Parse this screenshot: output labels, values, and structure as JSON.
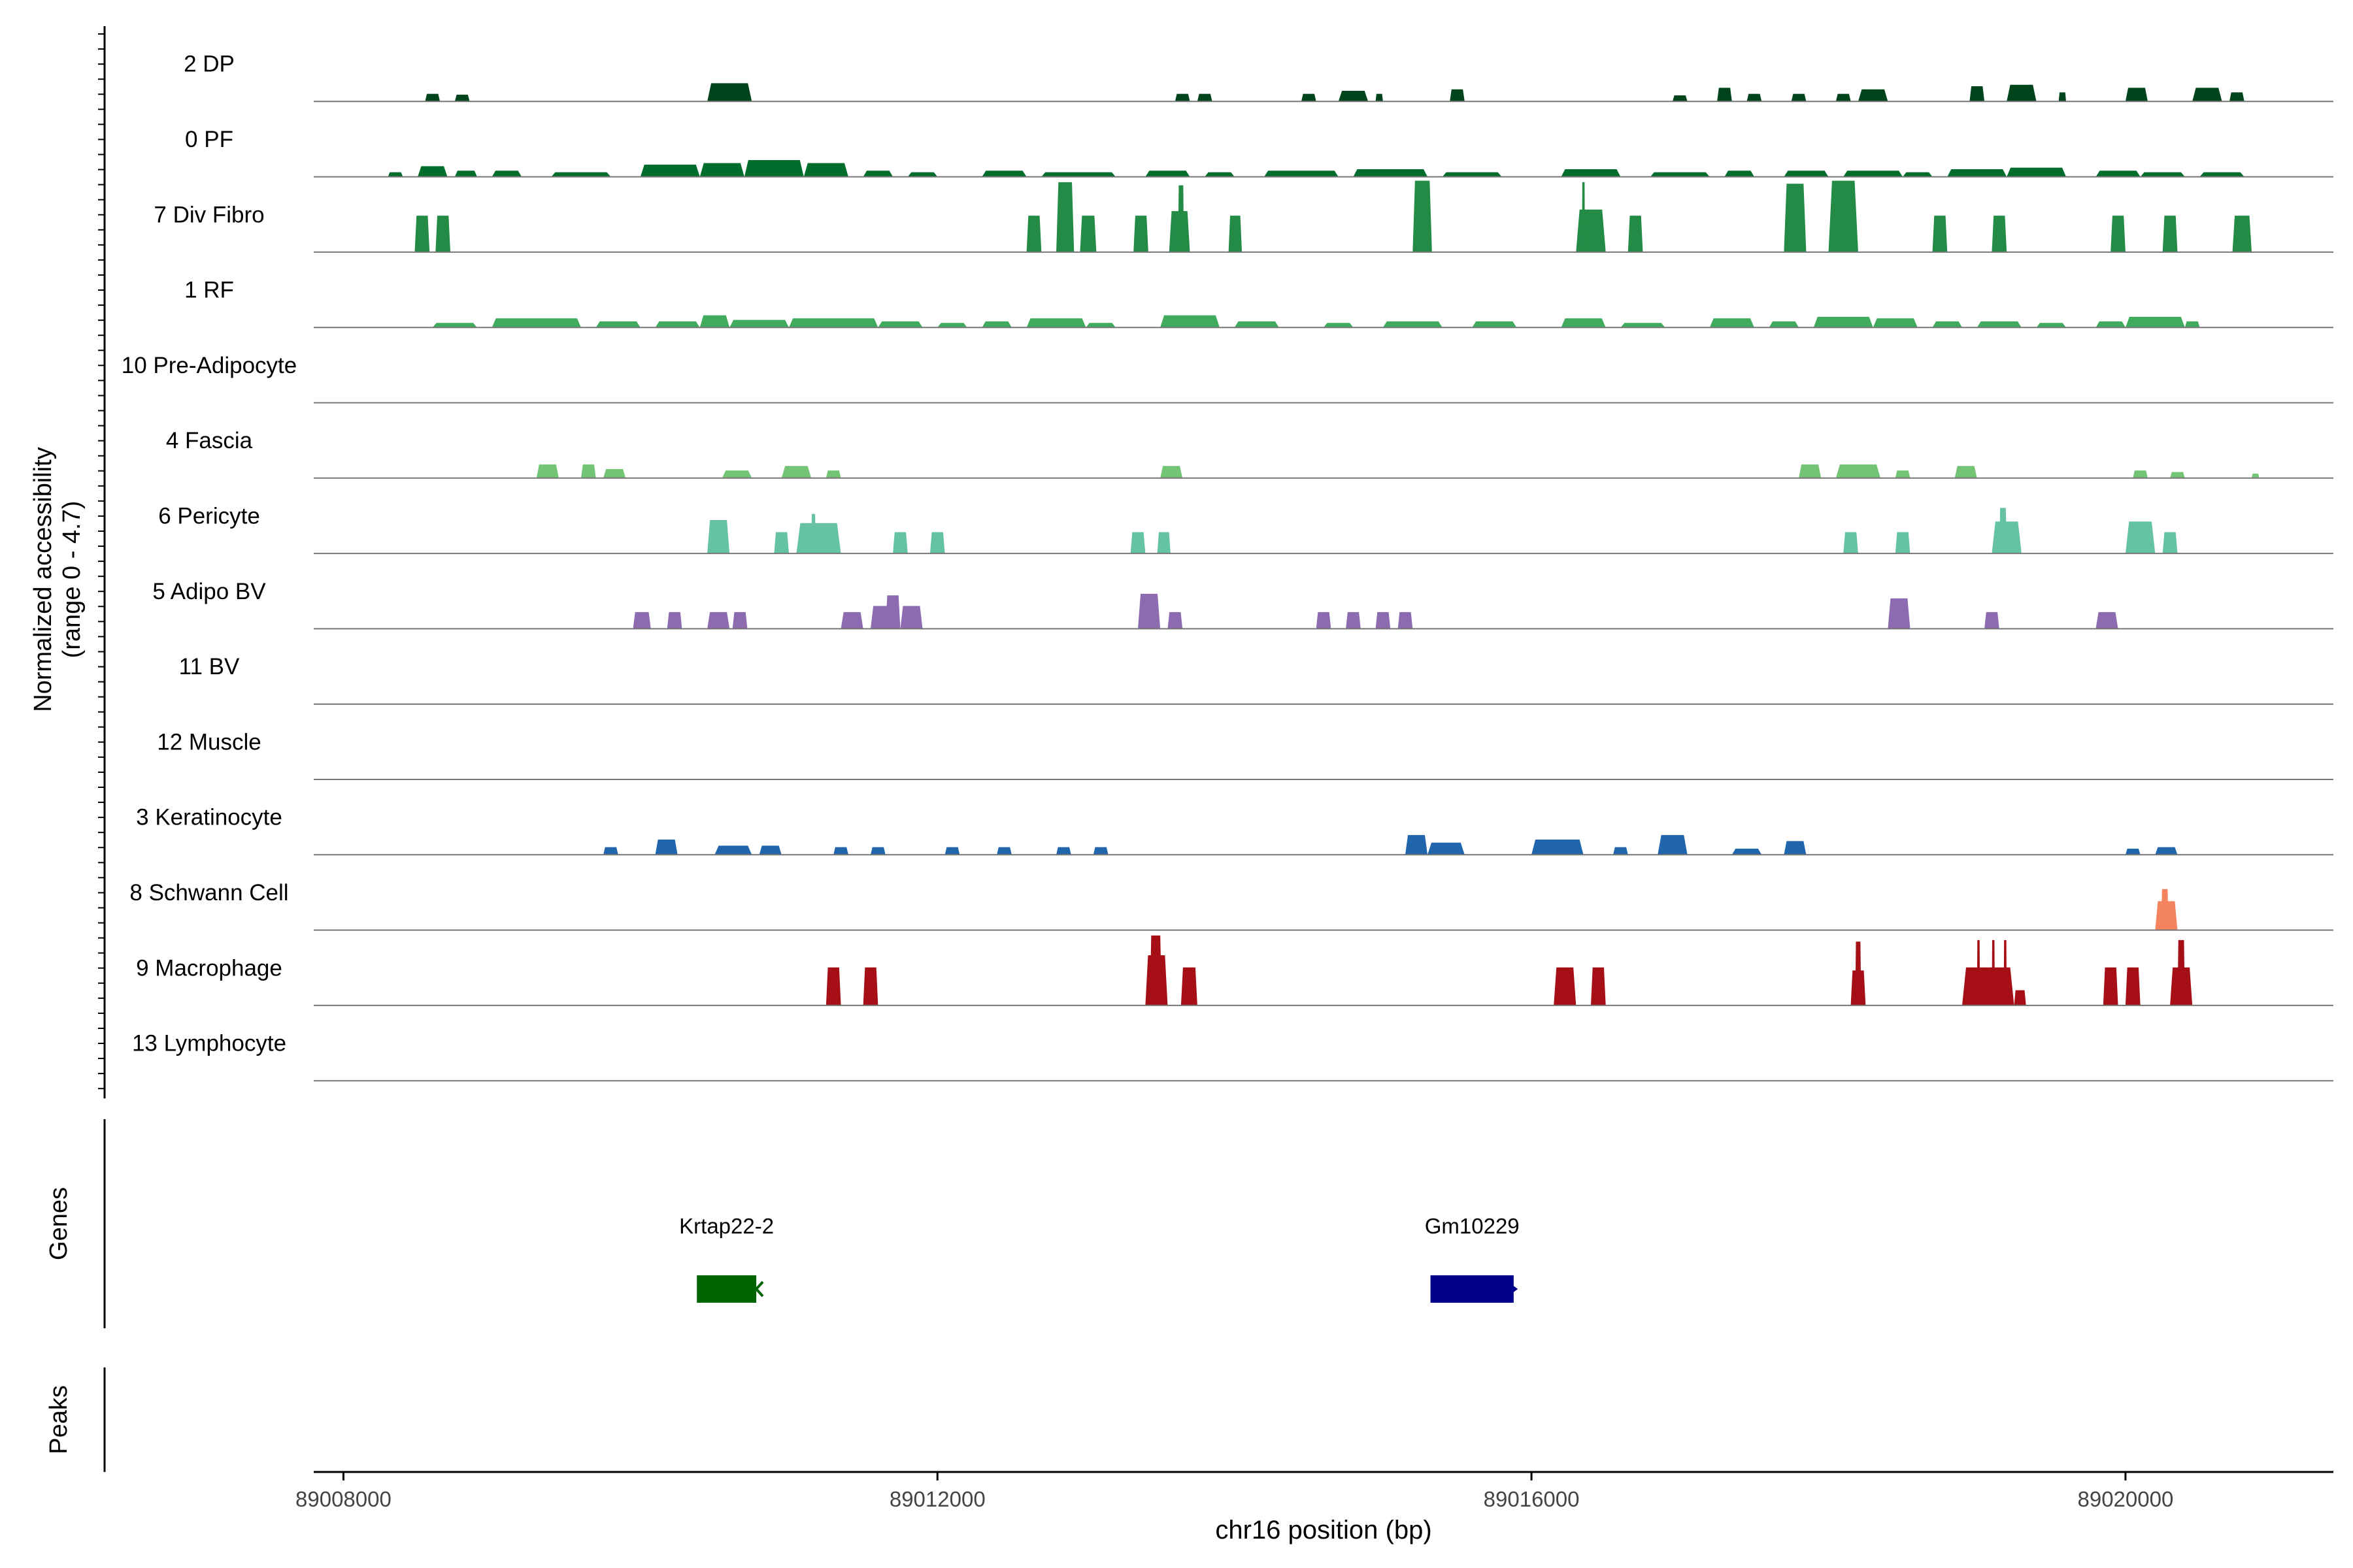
{
  "chart_data": {
    "type": "area",
    "title": "",
    "ylabel_line1": "Normalized accessibility",
    "ylabel_line2": "(range 0 - 4.7)",
    "xlabel": "chr16 position (bp)",
    "xlim": [
      89007800,
      89021400
    ],
    "ylim": [
      0,
      4.7
    ],
    "xticks": [
      89008000,
      89012000,
      89016000,
      89020000
    ],
    "xtick_labels": [
      "89008000",
      "89012000",
      "89016000",
      "89020000"
    ],
    "track_labels": {
      "genes": "Genes",
      "peaks": "Peaks"
    },
    "tracks": [
      {
        "name": "2 DP",
        "color": "#00441B",
        "peaks": [
          [
            89008550,
            89008650,
            0.5
          ],
          [
            89008750,
            89008850,
            0.45
          ],
          [
            89010450,
            89010750,
            1.2
          ],
          [
            89013600,
            89013700,
            0.5
          ],
          [
            89013750,
            89013850,
            0.5
          ],
          [
            89014450,
            89014550,
            0.5
          ],
          [
            89014700,
            89014900,
            0.7
          ],
          [
            89014950,
            89015000,
            0.5
          ],
          [
            89015450,
            89015550,
            0.8
          ],
          [
            89016950,
            89017050,
            0.4
          ],
          [
            89017250,
            89017350,
            0.9
          ],
          [
            89017450,
            89017550,
            0.5
          ],
          [
            89017750,
            89017850,
            0.5
          ],
          [
            89018050,
            89018150,
            0.5
          ],
          [
            89018200,
            89018400,
            0.8
          ],
          [
            89018950,
            89019050,
            1.0
          ],
          [
            89019200,
            89019400,
            1.1
          ],
          [
            89019550,
            89019600,
            0.6
          ],
          [
            89020000,
            89020150,
            0.9
          ],
          [
            89020450,
            89020650,
            0.9
          ],
          [
            89020700,
            89020800,
            0.6
          ]
        ]
      },
      {
        "name": "0 PF",
        "color": "#006D2C",
        "peaks": [
          [
            89008300,
            89008400,
            0.3
          ],
          [
            89008500,
            89008700,
            0.7
          ],
          [
            89008750,
            89008900,
            0.4
          ],
          [
            89009000,
            89009200,
            0.4
          ],
          [
            89009400,
            89009800,
            0.3
          ],
          [
            89010000,
            89010400,
            0.8
          ],
          [
            89010400,
            89010700,
            0.9
          ],
          [
            89010700,
            89011100,
            1.1
          ],
          [
            89011100,
            89011400,
            0.9
          ],
          [
            89011500,
            89011700,
            0.4
          ],
          [
            89011800,
            89012000,
            0.3
          ],
          [
            89012300,
            89012600,
            0.4
          ],
          [
            89012700,
            89013200,
            0.3
          ],
          [
            89013400,
            89013700,
            0.4
          ],
          [
            89013800,
            89014000,
            0.3
          ],
          [
            89014200,
            89014700,
            0.4
          ],
          [
            89014800,
            89015300,
            0.5
          ],
          [
            89015400,
            89015800,
            0.3
          ],
          [
            89016200,
            89016600,
            0.5
          ],
          [
            89016800,
            89017200,
            0.3
          ],
          [
            89017300,
            89017500,
            0.4
          ],
          [
            89017700,
            89018000,
            0.4
          ],
          [
            89018100,
            89018500,
            0.4
          ],
          [
            89018500,
            89018700,
            0.3
          ],
          [
            89018800,
            89019200,
            0.5
          ],
          [
            89019200,
            89019600,
            0.6
          ],
          [
            89019800,
            89020100,
            0.4
          ],
          [
            89020100,
            89020400,
            0.3
          ],
          [
            89020500,
            89020800,
            0.3
          ]
        ]
      },
      {
        "name": "7 Div Fibro",
        "color": "#238B45",
        "peaks": [
          [
            89008480,
            89008580,
            2.4
          ],
          [
            89008620,
            89008720,
            2.4
          ],
          [
            89012600,
            89012700,
            2.4
          ],
          [
            89012800,
            89012920,
            4.6
          ],
          [
            89012960,
            89013070,
            2.4
          ],
          [
            89013320,
            89013420,
            2.4
          ],
          [
            89013560,
            89013700,
            2.7
          ],
          [
            89013620,
            89013660,
            4.4
          ],
          [
            89013960,
            89014050,
            2.4
          ],
          [
            89015200,
            89015330,
            4.7
          ],
          [
            89016300,
            89016500,
            2.8
          ],
          [
            89016340,
            89016360,
            4.6
          ],
          [
            89016650,
            89016750,
            2.4
          ],
          [
            89017700,
            89017850,
            4.5
          ],
          [
            89018000,
            89018200,
            4.7
          ],
          [
            89018700,
            89018800,
            2.4
          ],
          [
            89019100,
            89019200,
            2.4
          ],
          [
            89019900,
            89020000,
            2.4
          ],
          [
            89020250,
            89020350,
            2.4
          ],
          [
            89020720,
            89020850,
            2.4
          ]
        ]
      },
      {
        "name": "1 RF",
        "color": "#41AB5D",
        "peaks": [
          [
            89008600,
            89008900,
            0.3
          ],
          [
            89009000,
            89009600,
            0.6
          ],
          [
            89009700,
            89010000,
            0.4
          ],
          [
            89010100,
            89010400,
            0.4
          ],
          [
            89010400,
            89010600,
            0.8
          ],
          [
            89010600,
            89011000,
            0.5
          ],
          [
            89011000,
            89011600,
            0.6
          ],
          [
            89011600,
            89011900,
            0.4
          ],
          [
            89012000,
            89012200,
            0.3
          ],
          [
            89012300,
            89012500,
            0.4
          ],
          [
            89012600,
            89013000,
            0.6
          ],
          [
            89013000,
            89013200,
            0.3
          ],
          [
            89013500,
            89013900,
            0.8
          ],
          [
            89014000,
            89014300,
            0.4
          ],
          [
            89014600,
            89014800,
            0.3
          ],
          [
            89015000,
            89015400,
            0.4
          ],
          [
            89015600,
            89015900,
            0.4
          ],
          [
            89016200,
            89016500,
            0.6
          ],
          [
            89016600,
            89016900,
            0.3
          ],
          [
            89017200,
            89017500,
            0.6
          ],
          [
            89017600,
            89017800,
            0.4
          ],
          [
            89017900,
            89018300,
            0.7
          ],
          [
            89018300,
            89018600,
            0.6
          ],
          [
            89018700,
            89018900,
            0.4
          ],
          [
            89019000,
            89019300,
            0.4
          ],
          [
            89019400,
            89019600,
            0.3
          ],
          [
            89019800,
            89020000,
            0.4
          ],
          [
            89020000,
            89020400,
            0.7
          ],
          [
            89020400,
            89020500,
            0.4
          ]
        ]
      },
      {
        "name": "10 Pre-Adipocyte",
        "color": "#41AB5D",
        "peaks": []
      },
      {
        "name": "4 Fascia",
        "color": "#74C476",
        "peaks": [
          [
            89009300,
            89009450,
            0.9
          ],
          [
            89009600,
            89009700,
            0.9
          ],
          [
            89009750,
            89009900,
            0.6
          ],
          [
            89010550,
            89010750,
            0.5
          ],
          [
            89010950,
            89011150,
            0.8
          ],
          [
            89011250,
            89011350,
            0.5
          ],
          [
            89013500,
            89013650,
            0.8
          ],
          [
            89017800,
            89017950,
            0.9
          ],
          [
            89018050,
            89018350,
            0.9
          ],
          [
            89018450,
            89018550,
            0.5
          ],
          [
            89018850,
            89019000,
            0.8
          ],
          [
            89020050,
            89020150,
            0.5
          ],
          [
            89020300,
            89020400,
            0.4
          ],
          [
            89020850,
            89020900,
            0.3
          ]
        ]
      },
      {
        "name": "6 Pericyte",
        "color": "#66C2A4",
        "peaks": [
          [
            89010450,
            89010600,
            2.2
          ],
          [
            89010900,
            89011000,
            1.4
          ],
          [
            89011050,
            89011350,
            2.0
          ],
          [
            89011150,
            89011180,
            2.6
          ],
          [
            89011700,
            89011800,
            1.4
          ],
          [
            89011950,
            89012050,
            1.4
          ],
          [
            89013300,
            89013400,
            1.4
          ],
          [
            89013480,
            89013570,
            1.4
          ],
          [
            89018100,
            89018200,
            1.4
          ],
          [
            89018450,
            89018550,
            1.4
          ],
          [
            89019100,
            89019300,
            2.1
          ],
          [
            89019150,
            89019200,
            3.0
          ],
          [
            89020000,
            89020200,
            2.1
          ],
          [
            89020250,
            89020350,
            1.4
          ]
        ]
      },
      {
        "name": "5 Adipo BV",
        "color": "#8C6BB1",
        "peaks": [
          [
            89009950,
            89010070,
            1.1
          ],
          [
            89010180,
            89010280,
            1.1
          ],
          [
            89010450,
            89010600,
            1.1
          ],
          [
            89010620,
            89010720,
            1.1
          ],
          [
            89011350,
            89011500,
            1.1
          ],
          [
            89011550,
            89011700,
            1.5
          ],
          [
            89011650,
            89011750,
            2.2
          ],
          [
            89011750,
            89011900,
            1.5
          ],
          [
            89013350,
            89013500,
            2.3
          ],
          [
            89013550,
            89013650,
            1.1
          ],
          [
            89014550,
            89014650,
            1.1
          ],
          [
            89014750,
            89014850,
            1.1
          ],
          [
            89014950,
            89015050,
            1.1
          ],
          [
            89015100,
            89015200,
            1.1
          ],
          [
            89018400,
            89018550,
            2.0
          ],
          [
            89019050,
            89019150,
            1.1
          ],
          [
            89019800,
            89019950,
            1.1
          ]
        ]
      },
      {
        "name": "11 BV",
        "color": "#8C6BB1",
        "peaks": []
      },
      {
        "name": "12 Muscle",
        "color": "#8C6BB1",
        "peaks": []
      },
      {
        "name": "3 Keratinocyte",
        "color": "#2166AC",
        "peaks": [
          [
            89009750,
            89009850,
            0.5
          ],
          [
            89010100,
            89010250,
            1.0
          ],
          [
            89010500,
            89010750,
            0.6
          ],
          [
            89010800,
            89010950,
            0.6
          ],
          [
            89011300,
            89011400,
            0.5
          ],
          [
            89011550,
            89011650,
            0.5
          ],
          [
            89012050,
            89012150,
            0.5
          ],
          [
            89012400,
            89012500,
            0.5
          ],
          [
            89012800,
            89012900,
            0.5
          ],
          [
            89013050,
            89013150,
            0.5
          ],
          [
            89015150,
            89015300,
            1.3
          ],
          [
            89015300,
            89015550,
            0.8
          ],
          [
            89016000,
            89016350,
            1.0
          ],
          [
            89016550,
            89016650,
            0.5
          ],
          [
            89016850,
            89017050,
            1.3
          ],
          [
            89017350,
            89017550,
            0.4
          ],
          [
            89017700,
            89017850,
            0.9
          ],
          [
            89020000,
            89020100,
            0.4
          ],
          [
            89020200,
            89020350,
            0.5
          ]
        ]
      },
      {
        "name": "8 Schwann Cell",
        "color": "#F4845F",
        "peaks": [
          [
            89020200,
            89020350,
            1.9
          ],
          [
            89020240,
            89020290,
            2.7
          ]
        ]
      },
      {
        "name": "9 Macrophage",
        "color": "#A50F15",
        "peaks": [
          [
            89011250,
            89011350,
            2.5
          ],
          [
            89011500,
            89011600,
            2.5
          ],
          [
            89013400,
            89013550,
            3.3
          ],
          [
            89013430,
            89013510,
            4.6
          ],
          [
            89013640,
            89013750,
            2.5
          ],
          [
            89016150,
            89016300,
            2.5
          ],
          [
            89016400,
            89016500,
            2.5
          ],
          [
            89018150,
            89018250,
            2.3
          ],
          [
            89018180,
            89018220,
            4.2
          ],
          [
            89018900,
            89019250,
            2.5
          ],
          [
            89019000,
            89019020,
            4.3
          ],
          [
            89019100,
            89019120,
            4.3
          ],
          [
            89019180,
            89019200,
            4.3
          ],
          [
            89019250,
            89019330,
            1.0
          ],
          [
            89019850,
            89019950,
            2.5
          ],
          [
            89020000,
            89020100,
            2.5
          ],
          [
            89020300,
            89020450,
            2.5
          ],
          [
            89020350,
            89020400,
            4.3
          ]
        ]
      },
      {
        "name": "13 Lymphocyte",
        "color": "#A50F15",
        "peaks": []
      }
    ],
    "genes": [
      {
        "name": "Krtap22-2",
        "start": 89010380,
        "end": 89010780,
        "strand": "-",
        "color": "#006400"
      },
      {
        "name": "Gm10229",
        "start": 89015320,
        "end": 89015880,
        "strand": "+",
        "color": "#00008B"
      }
    ],
    "grid": false,
    "legend": "none"
  }
}
